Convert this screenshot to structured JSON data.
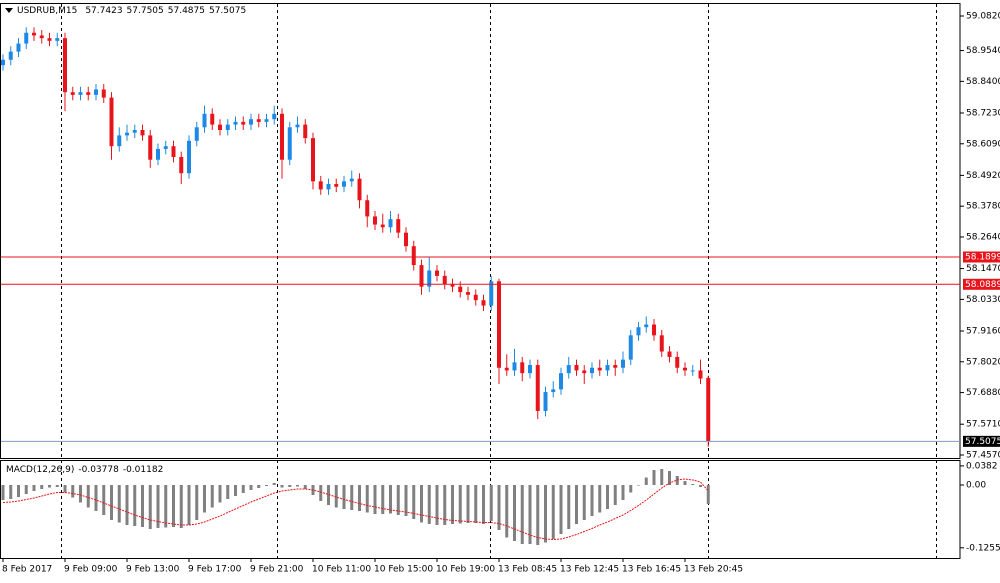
{
  "chart_data": [
    {
      "type": "candlestick",
      "title": "USDRUB,M15",
      "up_color": "#1e88e5",
      "down_color": "#e8141b",
      "open": [
        58.9,
        58.92,
        58.95,
        58.98,
        59.02,
        59.01,
        59.0,
        58.99,
        59.0,
        58.8,
        58.79,
        58.8,
        58.79,
        58.81,
        58.78,
        58.6,
        58.64,
        58.65,
        58.66,
        58.64,
        58.55,
        58.59,
        58.6,
        58.56,
        58.5,
        58.62,
        58.67,
        58.72,
        58.68,
        58.66,
        58.68,
        58.69,
        58.68,
        58.7,
        58.69,
        58.7,
        58.72,
        58.55,
        58.67,
        58.68,
        58.63,
        58.47,
        58.44,
        58.46,
        58.45,
        58.47,
        58.48,
        58.4,
        58.34,
        58.31,
        58.3,
        58.33,
        58.28,
        58.23,
        58.16,
        58.08,
        58.14,
        58.12,
        58.09,
        58.08,
        58.06,
        58.05,
        58.03,
        58.01,
        58.1,
        57.78,
        57.77,
        57.8,
        57.76,
        57.79,
        57.62,
        57.69,
        57.7,
        57.76,
        57.79,
        57.77,
        57.76,
        57.78,
        57.77,
        57.79,
        57.78,
        57.81,
        57.9,
        57.93,
        57.94,
        57.9,
        57.84,
        57.82,
        57.78,
        57.77,
        57.77,
        57.7423
      ],
      "high": [
        58.94,
        58.97,
        59.0,
        59.04,
        59.04,
        59.03,
        59.02,
        59.02,
        59.02,
        58.82,
        58.82,
        58.82,
        58.83,
        58.83,
        58.8,
        58.67,
        58.68,
        58.68,
        58.68,
        58.66,
        58.61,
        58.62,
        58.62,
        58.58,
        58.64,
        58.69,
        58.75,
        58.74,
        58.7,
        58.7,
        58.71,
        58.71,
        58.72,
        58.72,
        58.72,
        58.75,
        58.74,
        58.69,
        58.71,
        58.7,
        58.65,
        58.49,
        58.48,
        58.48,
        58.49,
        58.51,
        58.5,
        58.42,
        58.36,
        58.35,
        58.36,
        58.35,
        58.3,
        58.25,
        58.18,
        58.19,
        58.16,
        58.14,
        58.11,
        58.1,
        58.08,
        58.07,
        58.05,
        58.12,
        58.11,
        57.83,
        57.85,
        57.82,
        57.81,
        57.81,
        57.71,
        57.73,
        57.78,
        57.82,
        57.81,
        57.79,
        57.8,
        57.81,
        57.81,
        57.81,
        57.84,
        57.92,
        57.95,
        57.97,
        57.96,
        57.92,
        57.86,
        57.84,
        57.8,
        57.79,
        57.81,
        57.7505
      ],
      "low": [
        58.88,
        58.9,
        58.93,
        58.96,
        58.99,
        58.98,
        58.97,
        58.97,
        58.73,
        58.77,
        58.77,
        58.77,
        58.77,
        58.76,
        58.55,
        58.58,
        58.62,
        58.63,
        58.62,
        58.52,
        58.53,
        58.57,
        58.54,
        58.46,
        58.48,
        58.6,
        58.65,
        58.66,
        58.64,
        58.64,
        58.66,
        58.66,
        58.66,
        58.67,
        58.67,
        58.68,
        58.48,
        58.53,
        58.65,
        58.61,
        58.44,
        58.42,
        58.42,
        58.43,
        58.43,
        58.45,
        58.37,
        58.3,
        58.29,
        58.28,
        58.28,
        58.26,
        58.21,
        58.14,
        58.05,
        58.06,
        58.1,
        58.07,
        58.06,
        58.04,
        58.03,
        58.01,
        57.99,
        57.99,
        57.72,
        57.75,
        57.75,
        57.73,
        57.74,
        57.59,
        57.6,
        57.67,
        57.68,
        57.74,
        57.75,
        57.72,
        57.74,
        57.75,
        57.75,
        57.75,
        57.76,
        57.79,
        57.88,
        57.91,
        57.88,
        57.82,
        57.8,
        57.76,
        57.75,
        57.75,
        57.72,
        57.4875
      ],
      "close": [
        58.92,
        58.95,
        58.98,
        59.02,
        59.01,
        59.0,
        58.99,
        59.0,
        58.8,
        58.79,
        58.8,
        58.79,
        58.81,
        58.78,
        58.6,
        58.64,
        58.65,
        58.66,
        58.64,
        58.55,
        58.59,
        58.6,
        58.56,
        58.5,
        58.62,
        58.67,
        58.72,
        58.68,
        58.66,
        58.68,
        58.69,
        58.68,
        58.7,
        58.69,
        58.7,
        58.72,
        58.55,
        58.67,
        58.68,
        58.63,
        58.47,
        58.44,
        58.46,
        58.45,
        58.47,
        58.48,
        58.4,
        58.34,
        58.31,
        58.3,
        58.33,
        58.28,
        58.23,
        58.16,
        58.08,
        58.14,
        58.12,
        58.09,
        58.08,
        58.06,
        58.05,
        58.03,
        58.01,
        58.1,
        57.78,
        57.77,
        57.8,
        57.76,
        57.79,
        57.62,
        57.69,
        57.7,
        57.76,
        57.79,
        57.77,
        57.76,
        57.78,
        57.77,
        57.79,
        57.78,
        57.81,
        57.9,
        57.93,
        57.94,
        57.9,
        57.84,
        57.82,
        57.78,
        57.77,
        57.77,
        57.74,
        57.5075
      ],
      "ylim": [
        57.4459,
        59.1264
      ],
      "yticks": [
        {
          "value": 59.082,
          "label": "59.0820"
        },
        {
          "value": 58.954,
          "label": "58.9540"
        },
        {
          "value": 58.84,
          "label": "58.8400"
        },
        {
          "value": 58.723,
          "label": "58.7230"
        },
        {
          "value": 58.609,
          "label": "58.6090"
        },
        {
          "value": 58.492,
          "label": "58.4920"
        },
        {
          "value": 58.378,
          "label": "58.3780"
        },
        {
          "value": 58.264,
          "label": "58.2640"
        },
        {
          "value": 58.147,
          "label": "58.1470"
        },
        {
          "value": 58.033,
          "label": "58.0330"
        },
        {
          "value": 57.916,
          "label": "57.9160"
        },
        {
          "value": 57.802,
          "label": "57.8020"
        },
        {
          "value": 57.688,
          "label": "57.6880"
        },
        {
          "value": 57.571,
          "label": "57.5710"
        },
        {
          "value": 57.457,
          "label": "57.4570"
        }
      ],
      "hlines": [
        {
          "value": 58.1899,
          "color": "#e8141b"
        },
        {
          "value": 58.0889,
          "color": "#e8141b"
        }
      ],
      "price_line_color": "#7f9cc0",
      "xticks": [
        {
          "value": 0,
          "label": "8 Feb 2017"
        },
        {
          "value": 8,
          "label": "9 Feb 09:00"
        },
        {
          "value": 16,
          "label": "9 Feb 13:00"
        },
        {
          "value": 24,
          "label": "9 Feb 17:00"
        },
        {
          "value": 32,
          "label": "9 Feb 21:00"
        },
        {
          "value": 40,
          "label": "10 Feb 11:00"
        },
        {
          "value": 48,
          "label": "10 Feb 15:00"
        },
        {
          "value": 56,
          "label": "10 Feb 19:00"
        },
        {
          "value": 64,
          "label": "13 Feb 08:45"
        },
        {
          "value": 72,
          "label": "13 Feb 12:45"
        },
        {
          "value": 80,
          "label": "13 Feb 16:45"
        },
        {
          "value": 88,
          "label": "13 Feb 20:45"
        }
      ]
    },
    {
      "type": "macd",
      "title": "MACD(12,26,9)",
      "histogram": {
        "color": "#808080",
        "values": [
          -0.03,
          -0.028,
          -0.024,
          -0.018,
          -0.012,
          -0.008,
          -0.005,
          -0.004,
          -0.015,
          -0.025,
          -0.035,
          -0.045,
          -0.052,
          -0.06,
          -0.07,
          -0.075,
          -0.08,
          -0.082,
          -0.084,
          -0.088,
          -0.086,
          -0.085,
          -0.084,
          -0.086,
          -0.08,
          -0.07,
          -0.055,
          -0.045,
          -0.035,
          -0.028,
          -0.022,
          -0.016,
          -0.01,
          -0.006,
          -0.002,
          0.004,
          -0.005,
          -0.004,
          -0.003,
          -0.008,
          -0.02,
          -0.032,
          -0.04,
          -0.045,
          -0.048,
          -0.05,
          -0.052,
          -0.055,
          -0.058,
          -0.058,
          -0.057,
          -0.06,
          -0.062,
          -0.068,
          -0.075,
          -0.078,
          -0.08,
          -0.08,
          -0.078,
          -0.077,
          -0.076,
          -0.076,
          -0.078,
          -0.072,
          -0.09,
          -0.105,
          -0.112,
          -0.118,
          -0.118,
          -0.12,
          -0.115,
          -0.108,
          -0.098,
          -0.088,
          -0.078,
          -0.07,
          -0.062,
          -0.055,
          -0.048,
          -0.04,
          -0.03,
          -0.015,
          0.0,
          0.015,
          0.03,
          0.032,
          0.028,
          0.018,
          0.008,
          0.002,
          -0.004,
          -0.03778
        ]
      },
      "signal": {
        "color": "#e8141b",
        "values": [
          -0.035,
          -0.034,
          -0.032,
          -0.029,
          -0.026,
          -0.022,
          -0.018,
          -0.015,
          -0.015,
          -0.017,
          -0.02,
          -0.025,
          -0.03,
          -0.036,
          -0.042,
          -0.048,
          -0.054,
          -0.06,
          -0.065,
          -0.07,
          -0.073,
          -0.076,
          -0.078,
          -0.08,
          -0.08,
          -0.078,
          -0.074,
          -0.068,
          -0.062,
          -0.055,
          -0.048,
          -0.041,
          -0.034,
          -0.028,
          -0.022,
          -0.016,
          -0.012,
          -0.01,
          -0.008,
          -0.008,
          -0.01,
          -0.014,
          -0.019,
          -0.024,
          -0.029,
          -0.033,
          -0.037,
          -0.041,
          -0.044,
          -0.047,
          -0.05,
          -0.052,
          -0.054,
          -0.057,
          -0.06,
          -0.063,
          -0.066,
          -0.069,
          -0.071,
          -0.072,
          -0.073,
          -0.074,
          -0.075,
          -0.075,
          -0.077,
          -0.082,
          -0.088,
          -0.094,
          -0.1,
          -0.105,
          -0.108,
          -0.109,
          -0.108,
          -0.104,
          -0.099,
          -0.093,
          -0.087,
          -0.08,
          -0.074,
          -0.067,
          -0.06,
          -0.051,
          -0.041,
          -0.03,
          -0.018,
          -0.006,
          0.004,
          0.01,
          0.012,
          0.01,
          0.006,
          -0.01182
        ]
      },
      "ylim": [
        -0.148,
        0.048
      ],
      "yticks": [
        0.0382,
        {
          "value": 0,
          "label": "0.00"
        },
        -0.12559
      ]
    }
  ]
}
